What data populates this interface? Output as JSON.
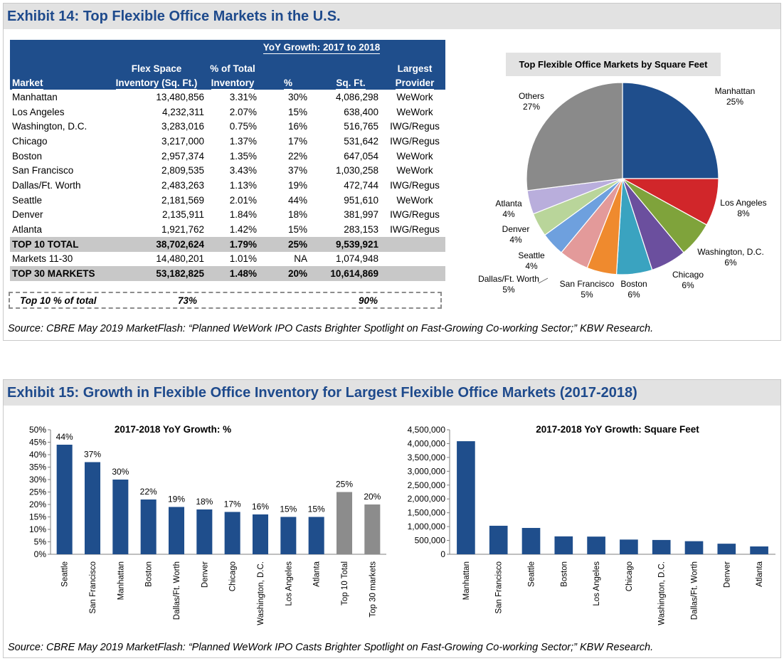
{
  "exhibit14": {
    "title": "Exhibit 14: Top Flexible Office Markets in the U.S.",
    "source": "Source: CBRE May 2019 MarketFlash: “Planned WeWork IPO Casts Brighter Spotlight on Fast-Growing Co-working Sector;” KBW Research.",
    "table": {
      "group_header": "YoY Growth: 2017 to 2018",
      "headers": {
        "market": "Market",
        "flex_line1": "Flex Space",
        "flex_line2": "Inventory (Sq. Ft.)",
        "pct_line1": "% of Total",
        "pct_line2": "Inventory",
        "growth_pct": "%",
        "growth_sqft": "Sq. Ft.",
        "provider_line1": "Largest",
        "provider_line2": "Provider"
      },
      "rows": [
        {
          "market": "Manhattan",
          "inventory": "13,480,856",
          "share": "3.31%",
          "growth_pct": "30%",
          "growth_sqft": "4,086,298",
          "provider": "WeWork"
        },
        {
          "market": "Los Angeles",
          "inventory": "4,232,311",
          "share": "2.07%",
          "growth_pct": "15%",
          "growth_sqft": "638,400",
          "provider": "WeWork"
        },
        {
          "market": "Washington, D.C.",
          "inventory": "3,283,016",
          "share": "0.75%",
          "growth_pct": "16%",
          "growth_sqft": "516,765",
          "provider": "IWG/Regus"
        },
        {
          "market": "Chicago",
          "inventory": "3,217,000",
          "share": "1.37%",
          "growth_pct": "17%",
          "growth_sqft": "531,642",
          "provider": "IWG/Regus"
        },
        {
          "market": "Boston",
          "inventory": "2,957,374",
          "share": "1.35%",
          "growth_pct": "22%",
          "growth_sqft": "647,054",
          "provider": "WeWork"
        },
        {
          "market": "San Francisco",
          "inventory": "2,809,535",
          "share": "3.43%",
          "growth_pct": "37%",
          "growth_sqft": "1,030,258",
          "provider": "WeWork"
        },
        {
          "market": "Dallas/Ft. Worth",
          "inventory": "2,483,263",
          "share": "1.13%",
          "growth_pct": "19%",
          "growth_sqft": "472,744",
          "provider": "IWG/Regus"
        },
        {
          "market": "Seattle",
          "inventory": "2,181,569",
          "share": "2.01%",
          "growth_pct": "44%",
          "growth_sqft": "951,610",
          "provider": "WeWork"
        },
        {
          "market": "Denver",
          "inventory": "2,135,911",
          "share": "1.84%",
          "growth_pct": "18%",
          "growth_sqft": "381,997",
          "provider": "IWG/Regus"
        },
        {
          "market": "Atlanta",
          "inventory": "1,921,762",
          "share": "1.42%",
          "growth_pct": "15%",
          "growth_sqft": "283,153",
          "provider": "IWG/Regus"
        }
      ],
      "top10_total": {
        "market": "TOP 10 TOTAL",
        "inventory": "38,702,624",
        "share": "1.79%",
        "growth_pct": "25%",
        "growth_sqft": "9,539,921",
        "provider": ""
      },
      "markets_11_30": {
        "market": "Markets 11-30",
        "inventory": "14,480,201",
        "share": "1.01%",
        "growth_pct": "NA",
        "growth_sqft": "1,074,948",
        "provider": ""
      },
      "top30": {
        "market": "TOP 30 MARKETS",
        "inventory": "53,182,825",
        "share": "1.48%",
        "growth_pct": "20%",
        "growth_sqft": "10,614,869",
        "provider": ""
      },
      "top10_share": {
        "label": "Top 10 % of total",
        "inventory": "73%",
        "growth_sqft": "90%"
      }
    }
  },
  "exhibit15": {
    "title": "Exhibit 15: Growth in Flexible Office Inventory for Largest Flexible Office Markets (2017-2018)",
    "source": "Source: CBRE May 2019 MarketFlash: “Planned WeWork IPO Casts Brighter Spotlight on Fast-Growing Co-working Sector;” KBW Research."
  },
  "colors": {
    "navy": "#1f4e8c",
    "gray_bar": "#8c8c8c",
    "pie": [
      "#1f4e8c",
      "#d1262a",
      "#7fa33b",
      "#6b4f9e",
      "#3aa3c0",
      "#ef8a2e",
      "#e39a9a",
      "#6ea0de",
      "#b9d59a",
      "#b9aedc",
      "#8a8a8a"
    ]
  },
  "chart_data": [
    {
      "type": "pie",
      "title": "Top Flexible Office Markets by Square Feet",
      "slices": [
        {
          "label": "Manhattan",
          "value": 25,
          "value_label": "25%"
        },
        {
          "label": "Los Angeles",
          "value": 8,
          "value_label": "8%"
        },
        {
          "label": "Washington,  D.C.",
          "value": 6,
          "value_label": "6%"
        },
        {
          "label": "Chicago",
          "value": 6,
          "value_label": "6%"
        },
        {
          "label": "Boston",
          "value": 6,
          "value_label": "6%"
        },
        {
          "label": "San Francisco",
          "value": 5,
          "value_label": "5%"
        },
        {
          "label": "Dallas/Ft. Worth",
          "value": 5,
          "value_label": "5%"
        },
        {
          "label": "Seattle",
          "value": 4,
          "value_label": "4%"
        },
        {
          "label": "Denver",
          "value": 4,
          "value_label": "4%"
        },
        {
          "label": "Atlanta",
          "value": 4,
          "value_label": "4%"
        },
        {
          "label": "Others",
          "value": 27,
          "value_label": "27%"
        }
      ]
    },
    {
      "type": "bar",
      "title": "2017-2018 YoY Growth: %",
      "categories": [
        "Seattle",
        "San Francisco",
        "Manhattan",
        "Boston",
        "Dallas/Ft. Worth",
        "Denver",
        "Chicago",
        "Washington, D.C.",
        "Los Angeles",
        "Atlanta",
        "Top 10 Total",
        "Top 30 markets"
      ],
      "values": [
        44,
        37,
        30,
        22,
        19,
        18,
        17,
        16,
        15,
        15,
        25,
        20
      ],
      "value_labels": [
        "44%",
        "37%",
        "30%",
        "22%",
        "19%",
        "18%",
        "17%",
        "16%",
        "15%",
        "15%",
        "25%",
        "20%"
      ],
      "highlight": [
        false,
        false,
        false,
        false,
        false,
        false,
        false,
        false,
        false,
        false,
        true,
        true
      ],
      "ylim": [
        0,
        50
      ],
      "yticks": [
        "0%",
        "5%",
        "10%",
        "15%",
        "20%",
        "25%",
        "30%",
        "35%",
        "40%",
        "45%",
        "50%"
      ]
    },
    {
      "type": "bar",
      "title": "2017-2018 YoY Growth: Square Feet",
      "categories": [
        "Manhattan",
        "San Francisco",
        "Seattle",
        "Boston",
        "Los Angeles",
        "Chicago",
        "Washington, D.C.",
        "Dallas/Ft. Worth",
        "Denver",
        "Atlanta"
      ],
      "values": [
        4086298,
        1030258,
        951610,
        647054,
        638400,
        531642,
        516765,
        472744,
        381997,
        283153
      ],
      "ylim": [
        0,
        4500000
      ],
      "yticks": [
        "0",
        "500,000",
        "1,000,000",
        "1,500,000",
        "2,000,000",
        "2,500,000",
        "3,000,000",
        "3,500,000",
        "4,000,000",
        "4,500,000"
      ]
    }
  ]
}
